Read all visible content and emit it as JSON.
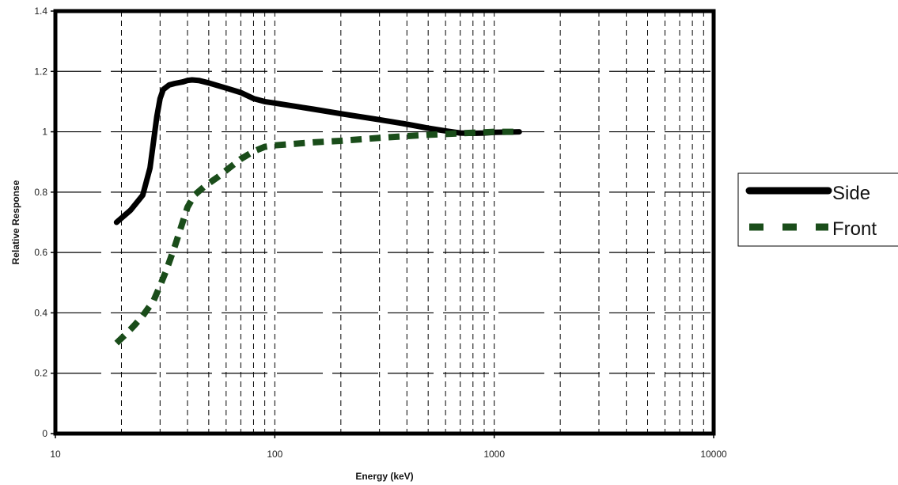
{
  "chart_data": {
    "type": "line",
    "title": "",
    "xlabel": "Energy (keV)",
    "ylabel": "Relative Response",
    "x_scale": "log",
    "xlim": [
      10,
      10000
    ],
    "ylim": [
      0,
      1.4
    ],
    "x_ticks": [
      10,
      100,
      1000,
      10000
    ],
    "y_ticks": [
      0,
      0.2,
      0.4,
      0.6,
      0.8,
      1,
      1.2,
      1.4
    ],
    "x_tick_labels": [
      "10",
      "100",
      "1000",
      "10000"
    ],
    "y_tick_labels": [
      "0",
      "0.2",
      "0.4",
      "0.6",
      "0.8",
      "1",
      "1.2",
      "1.4"
    ],
    "grid": true,
    "legend_position": "right",
    "series": [
      {
        "name": "Side",
        "color": "#000000",
        "style": "solid",
        "x": [
          19,
          22,
          25,
          27,
          29,
          30,
          31,
          33,
          35,
          38,
          40,
          42,
          45,
          50,
          60,
          70,
          80,
          90,
          100,
          150,
          200,
          300,
          400,
          500,
          600,
          700,
          800,
          900,
          1000,
          1300
        ],
        "y": [
          0.7,
          0.74,
          0.79,
          0.88,
          1.05,
          1.11,
          1.14,
          1.155,
          1.16,
          1.165,
          1.17,
          1.172,
          1.17,
          1.162,
          1.145,
          1.13,
          1.11,
          1.1,
          1.095,
          1.075,
          1.06,
          1.04,
          1.025,
          1.012,
          1.003,
          0.996,
          0.995,
          0.996,
          0.998,
          1.0
        ]
      },
      {
        "name": "Front",
        "color": "#1a4d1a",
        "style": "dashed",
        "x": [
          19,
          21,
          23,
          25,
          28,
          30,
          32,
          35,
          38,
          40,
          43,
          48,
          55,
          62,
          70,
          80,
          90,
          100,
          150,
          200,
          300,
          500,
          700,
          1000,
          1300
        ],
        "y": [
          0.3,
          0.33,
          0.36,
          0.39,
          0.44,
          0.49,
          0.54,
          0.62,
          0.7,
          0.75,
          0.79,
          0.82,
          0.85,
          0.88,
          0.91,
          0.935,
          0.95,
          0.955,
          0.965,
          0.97,
          0.98,
          0.99,
          0.995,
          1.0,
          1.0
        ]
      }
    ]
  }
}
